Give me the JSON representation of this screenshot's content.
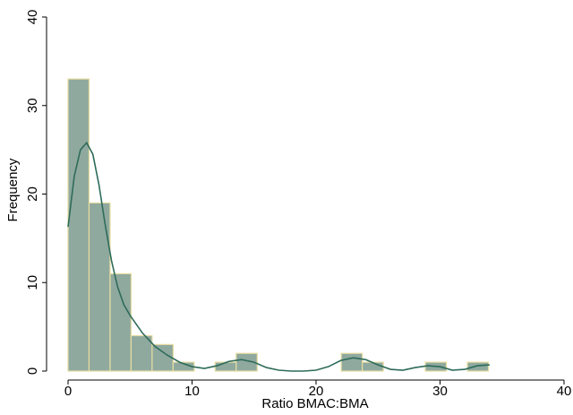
{
  "chart_data": {
    "type": "histogram",
    "x_label": "Ratio BMAC:BMA",
    "y_label": "Frequency",
    "bins": [
      0,
      1.695,
      3.39,
      5.085,
      6.78,
      8.475,
      10.17,
      11.865,
      13.56,
      15.255,
      16.95,
      18.645,
      20.34,
      22.035,
      23.73,
      25.425,
      27.12,
      28.815,
      30.51,
      32.205,
      33.9
    ],
    "counts": [
      33,
      19,
      11,
      4,
      3,
      1,
      0,
      1,
      2,
      0,
      0,
      0,
      0,
      2,
      1,
      0,
      0,
      1,
      0,
      1
    ],
    "color": "#8fa99f",
    "edge_color": "#e6dca0",
    "density": {
      "color": "#2e6b5a",
      "x": [
        0,
        0.5,
        1,
        1.5,
        2,
        2.5,
        3,
        3.5,
        4,
        4.5,
        5,
        6,
        7,
        8,
        9,
        10,
        11,
        12,
        13,
        14,
        15,
        16,
        17,
        18,
        19,
        20,
        21,
        22,
        23,
        24,
        25,
        26,
        27,
        28,
        29,
        30,
        31,
        32,
        33,
        34
      ],
      "values": [
        16.3,
        22,
        25,
        25.8,
        24.5,
        21,
        16.5,
        12.5,
        9.5,
        7.5,
        6.3,
        4.3,
        2.8,
        1.8,
        1,
        0.5,
        0.3,
        0.6,
        1.1,
        1.3,
        1,
        0.4,
        0.1,
        0,
        0,
        0.1,
        0.5,
        1.2,
        1.5,
        1.3,
        0.7,
        0.2,
        0.1,
        0.4,
        0.6,
        0.5,
        0.1,
        0.2,
        0.6,
        0.7
      ]
    },
    "xlim": [
      0,
      40
    ],
    "ylim": [
      0,
      40
    ],
    "xticks": [
      0,
      10,
      20,
      30,
      40
    ],
    "yticks": [
      0,
      10,
      20,
      30,
      40
    ],
    "grid": false
  }
}
